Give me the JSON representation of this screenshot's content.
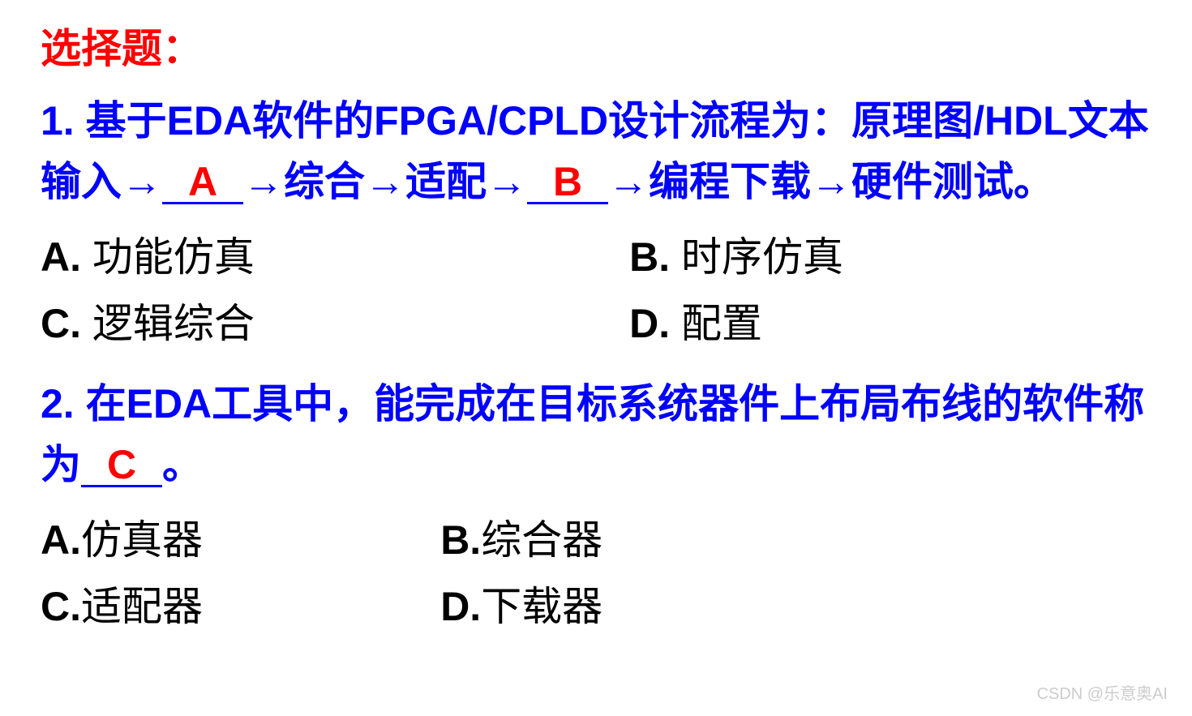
{
  "colors": {
    "title": "#ff0000",
    "question": "#0000ff",
    "option_text": "#000000",
    "answer": "#ff0000",
    "watermark": "#cccccc",
    "background": "#ffffff"
  },
  "typography": {
    "title_fontsize": 50,
    "question_fontsize": 50,
    "option_fontsize": 50,
    "watermark_fontsize": 20,
    "bold_weight": "bold"
  },
  "section_title": "选择题：",
  "q1": {
    "number": "1. ",
    "text_part1": "基于",
    "text_eda": "EDA",
    "text_part2": "软件的",
    "text_fpga": "FPGA/CPLD",
    "text_part3": "设计流程为：原理图",
    "text_hdl": "/HDL",
    "text_part4": "文本输入→",
    "blank1_answer": "A",
    "text_part5": "→综合→适配→",
    "blank2_answer": "B",
    "text_part6": "→编程下载→硬件测试。",
    "options": {
      "A": {
        "letter": "A. ",
        "text": "功能仿真",
        "width": "53%"
      },
      "B": {
        "letter": "B. ",
        "text": "时序仿真",
        "width": "47%"
      },
      "C": {
        "letter": "C. ",
        "text": "逻辑综合",
        "width": "53%"
      },
      "D": {
        "letter": "D. ",
        "text": "配置",
        "width": "47%"
      }
    }
  },
  "q2": {
    "number": "2. ",
    "text_part1": "在",
    "text_eda": "EDA",
    "text_part2": "工具中，能完成在目标系统器件上布局布线的软件称为",
    "blank_answer": "C",
    "text_part3": "。",
    "options": {
      "A": {
        "letter": "A.",
        "text": "仿真器",
        "width": "36%"
      },
      "B": {
        "letter": "B.",
        "text": "综合器",
        "width": "64%"
      },
      "C": {
        "letter": "C.",
        "text": "适配器",
        "width": "36%"
      },
      "D": {
        "letter": "D.",
        "text": "下载器",
        "width": "64%"
      }
    }
  },
  "watermark": "CSDN @乐意奥AI"
}
